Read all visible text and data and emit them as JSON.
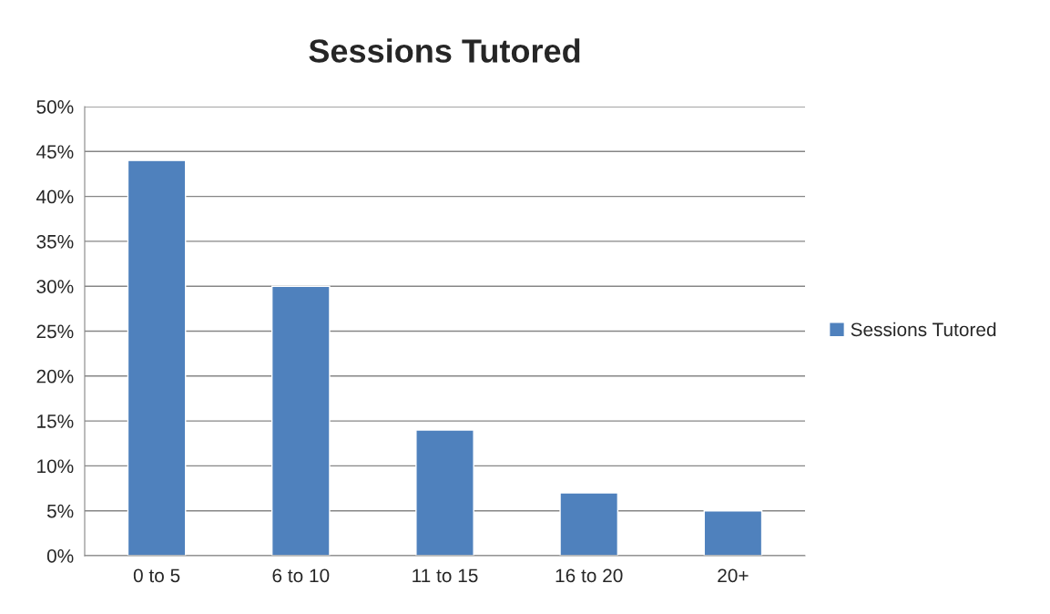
{
  "chart_data": {
    "type": "bar",
    "title": "Sessions Tutored",
    "categories": [
      "0 to 5",
      "6 to 10",
      "11 to 15",
      "16 to 20",
      "20+"
    ],
    "series": [
      {
        "name": "Sessions Tutored",
        "color": "#4f81bd",
        "values": [
          44,
          30,
          14,
          7,
          5
        ]
      }
    ],
    "ylim": [
      0,
      50
    ],
    "yticks": [
      {
        "value": 0,
        "label": "0%"
      },
      {
        "value": 5,
        "label": "5%"
      },
      {
        "value": 10,
        "label": "10%"
      },
      {
        "value": 15,
        "label": "15%"
      },
      {
        "value": 20,
        "label": "20%"
      },
      {
        "value": 25,
        "label": "25%"
      },
      {
        "value": 30,
        "label": "30%"
      },
      {
        "value": 35,
        "label": "35%"
      },
      {
        "value": 40,
        "label": "40%"
      },
      {
        "value": 45,
        "label": "45%"
      },
      {
        "value": 50,
        "label": "50%"
      }
    ],
    "grid": "y",
    "legend": "right"
  }
}
